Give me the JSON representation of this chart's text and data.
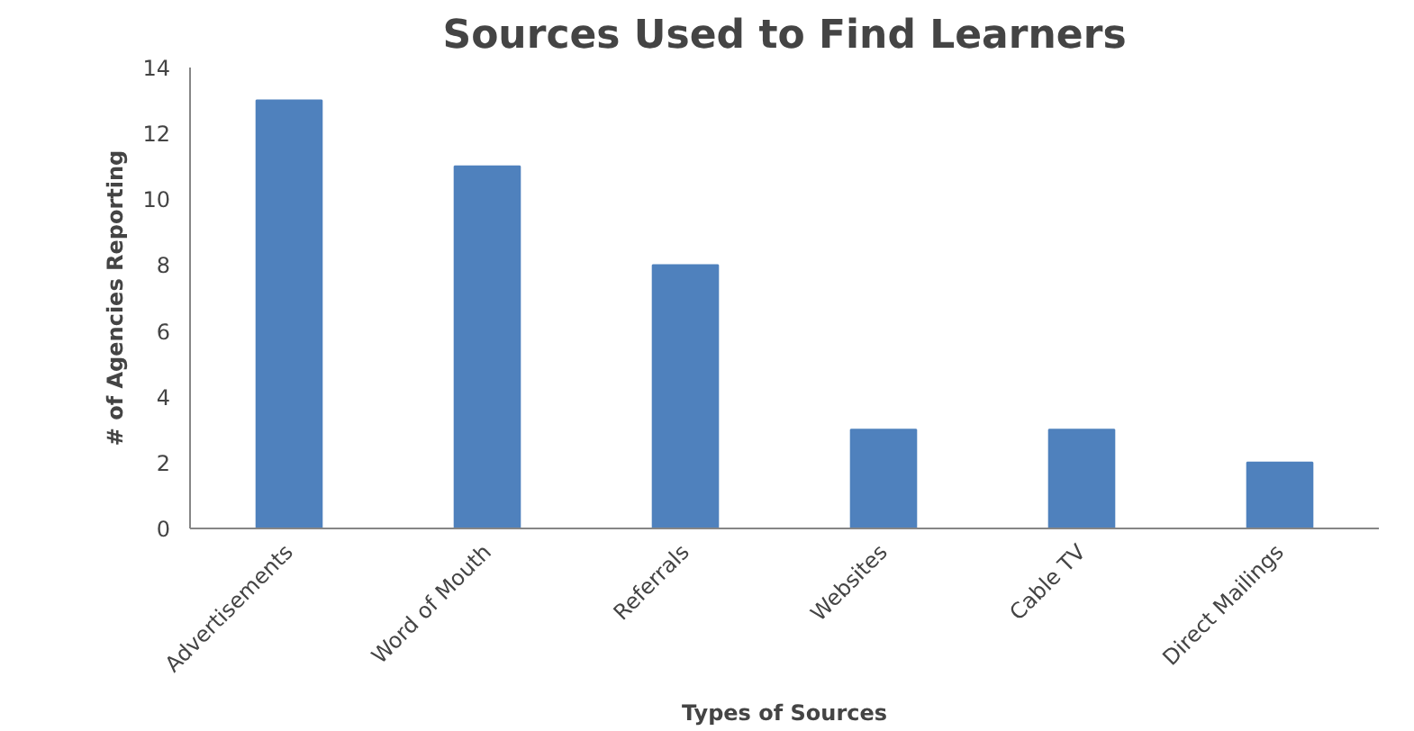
{
  "chart_data": {
    "type": "bar",
    "title": "Sources Used to Find Learners",
    "xlabel": "Types of Sources",
    "ylabel": "# of Agencies Reporting",
    "categories": [
      "Advertisements",
      "Word of Mouth",
      "Referrals",
      "Websites",
      "Cable TV",
      "Direct Mailings"
    ],
    "values": [
      13,
      11,
      8,
      3,
      3,
      2
    ],
    "color": "#4f81bd",
    "ylim": [
      0,
      14
    ],
    "yticks": [
      0,
      2,
      4,
      6,
      8,
      10,
      12,
      14
    ],
    "grid": false
  }
}
